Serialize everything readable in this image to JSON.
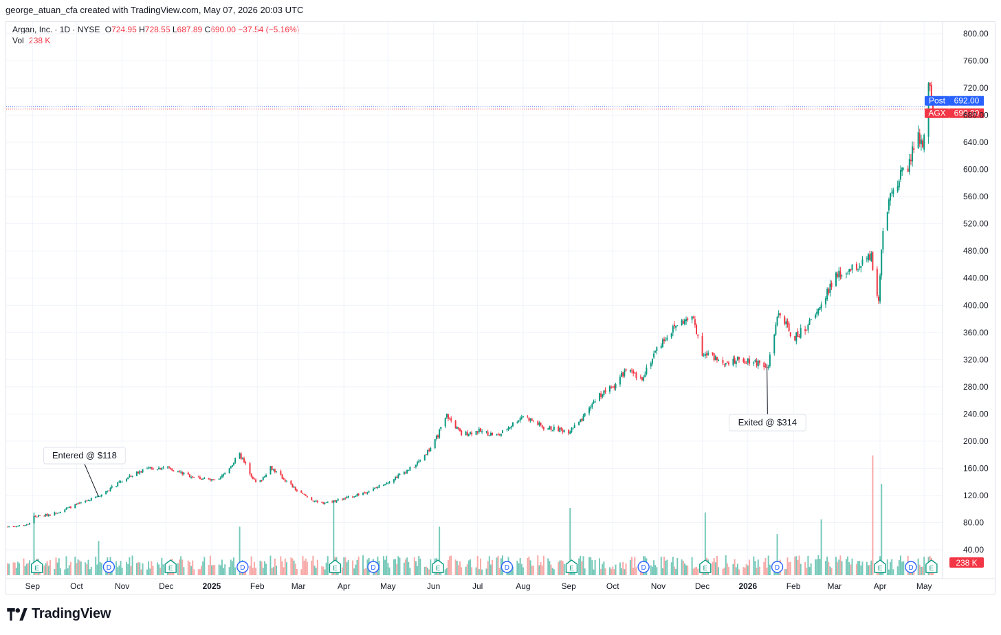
{
  "header": {
    "caption": "george_atuan_cfa created with TradingView.com, May 07, 2026 20:03 UTC"
  },
  "legend": {
    "symbol": "Argan, Inc. · 1D · NYSE",
    "o_label": "O",
    "o_value": "724.95",
    "h_label": "H",
    "h_value": "728.55",
    "l_label": "L",
    "l_value": "687.89",
    "c_label": "C",
    "c_value": "690.00",
    "change": "−37.54 (−5.16%)",
    "vol_label": "Vol",
    "vol_value": "238 K"
  },
  "colors": {
    "up": "#089981",
    "down": "#f23645",
    "post": "#2962ff",
    "up_vol": "#76c9b9",
    "down_vol": "#f7a9a7",
    "event_earnings": "#089981",
    "event_dividend": "#2962ff"
  },
  "footer": {
    "brand": "TradingView"
  },
  "chart_data": {
    "type": "candlestick",
    "symbol": "AGX",
    "interval": "1D",
    "ylim": [
      0,
      820
    ],
    "y_ticks": [
      "40.00",
      "80.00",
      "120.00",
      "160.00",
      "200.00",
      "240.00",
      "280.00",
      "320.00",
      "360.00",
      "400.00",
      "440.00",
      "480.00",
      "520.00",
      "560.00",
      "600.00",
      "640.00",
      "680.00",
      "720.00",
      "760.00",
      "800.00"
    ],
    "x_tick_labels": [
      "Sep",
      "Oct",
      "Nov",
      "Dec",
      "2025",
      "Feb",
      "Mar",
      "Apr",
      "May",
      "Jun",
      "Jul",
      "Aug",
      "Sep",
      "Oct",
      "Nov",
      "Dec",
      "2026",
      "Feb",
      "Mar",
      "Apr",
      "May"
    ],
    "x_tick_bold": [
      "2025",
      "2026"
    ],
    "x_range": [
      "2024-08-15",
      "2026-05-07"
    ],
    "price_path": [
      [
        "2024-08-15",
        74
      ],
      [
        "2024-08-29",
        77
      ],
      [
        "2024-09-01",
        88
      ],
      [
        "2024-09-15",
        93
      ],
      [
        "2024-10-15",
        118
      ],
      [
        "2024-10-31",
        140
      ],
      [
        "2024-11-15",
        158
      ],
      [
        "2024-12-01",
        162
      ],
      [
        "2024-12-15",
        150
      ],
      [
        "2025-01-05",
        140
      ],
      [
        "2025-01-20",
        180
      ],
      [
        "2025-02-01",
        135
      ],
      [
        "2025-02-10",
        162
      ],
      [
        "2025-03-01",
        125
      ],
      [
        "2025-03-15",
        108
      ],
      [
        "2025-04-01",
        115
      ],
      [
        "2025-04-20",
        128
      ],
      [
        "2025-05-05",
        145
      ],
      [
        "2025-05-20",
        165
      ],
      [
        "2025-06-01",
        195
      ],
      [
        "2025-06-10",
        238
      ],
      [
        "2025-06-20",
        210
      ],
      [
        "2025-07-01",
        215
      ],
      [
        "2025-07-15",
        208
      ],
      [
        "2025-08-01",
        238
      ],
      [
        "2025-08-15",
        220
      ],
      [
        "2025-09-01",
        215
      ],
      [
        "2025-09-10",
        230
      ],
      [
        "2025-09-20",
        265
      ],
      [
        "2025-10-01",
        280
      ],
      [
        "2025-10-10",
        305
      ],
      [
        "2025-10-20",
        290
      ],
      [
        "2025-11-01",
        340
      ],
      [
        "2025-11-15",
        375
      ],
      [
        "2025-11-25",
        380
      ],
      [
        "2025-12-01",
        330
      ],
      [
        "2025-12-15",
        318
      ],
      [
        "2026-01-01",
        320
      ],
      [
        "2026-01-15",
        312
      ],
      [
        "2026-01-22",
        390
      ],
      [
        "2026-02-01",
        350
      ],
      [
        "2026-02-15",
        380
      ],
      [
        "2026-03-01",
        440
      ],
      [
        "2026-03-15",
        455
      ],
      [
        "2026-03-26",
        470
      ],
      [
        "2026-03-31",
        400
      ],
      [
        "2026-04-03",
        510
      ],
      [
        "2026-04-10",
        575
      ],
      [
        "2026-04-20",
        605
      ],
      [
        "2026-04-27",
        655
      ],
      [
        "2026-04-30",
        625
      ],
      [
        "2026-05-03",
        720
      ],
      [
        "2026-05-05",
        728
      ],
      [
        "2026-05-07",
        690
      ]
    ],
    "volume_ylim": [
      0,
      820
    ],
    "volume_spikes": [
      [
        "2024-09-02",
        110
      ],
      [
        "2024-10-16",
        60
      ],
      [
        "2025-01-20",
        85
      ],
      [
        "2025-01-25",
        90
      ],
      [
        "2025-03-25",
        130
      ],
      [
        "2025-06-05",
        85
      ],
      [
        "2025-09-02",
        118
      ],
      [
        "2025-12-03",
        110
      ],
      [
        "2026-01-21",
        72
      ],
      [
        "2026-02-20",
        98
      ],
      [
        "2026-03-27",
        210
      ],
      [
        "2026-04-02",
        160
      ],
      [
        "2026-04-25",
        70
      ]
    ],
    "events": [
      {
        "type": "E",
        "date": "2024-09-04"
      },
      {
        "type": "D",
        "date": "2024-10-23"
      },
      {
        "type": "E",
        "date": "2024-12-04"
      },
      {
        "type": "D",
        "date": "2025-01-22"
      },
      {
        "type": "E",
        "date": "2025-03-26"
      },
      {
        "type": "D",
        "date": "2025-04-21"
      },
      {
        "type": "E",
        "date": "2025-06-04"
      },
      {
        "type": "D",
        "date": "2025-07-21"
      },
      {
        "type": "E",
        "date": "2025-09-03"
      },
      {
        "type": "D",
        "date": "2025-10-22"
      },
      {
        "type": "E",
        "date": "2025-12-03"
      },
      {
        "type": "D",
        "date": "2026-01-21"
      },
      {
        "type": "E",
        "date": "2026-04-01"
      },
      {
        "type": "D",
        "date": "2026-04-22"
      },
      {
        "type": "E",
        "date": "2026-05-06"
      }
    ],
    "annotations": [
      {
        "text": "Entered @ $118",
        "date": "2024-10-16",
        "price": 118,
        "label_side": "above"
      },
      {
        "text": "Exited @ $314",
        "date": "2026-01-14",
        "price": 314,
        "label_side": "below"
      }
    ],
    "price_labels": [
      {
        "tag": "Post",
        "value": "692.00",
        "price": 692,
        "color": "#2962ff"
      },
      {
        "tag": "AGX",
        "value": "690.00",
        "price": 690,
        "color": "#f23645"
      }
    ],
    "volume_label": "238 K"
  }
}
